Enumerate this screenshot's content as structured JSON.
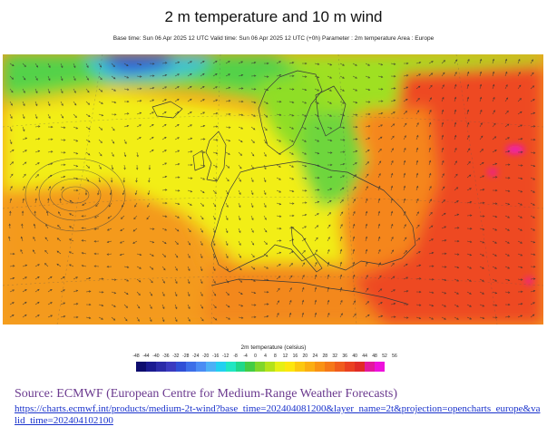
{
  "header": {
    "title": "2 m temperature and 10 m wind",
    "subtitle": "Base time: Sun 06 Apr 2025 12 UTC Valid time: Sun 06 Apr 2025 12 UTC (+0h) Parameter : 2m temperature Area : Europe"
  },
  "legend": {
    "title": "2m temperature (celsius)",
    "ticks": [
      "-48",
      "-44",
      "-40",
      "-36",
      "-32",
      "-28",
      "-24",
      "-20",
      "-16",
      "-12",
      "-8",
      "-4",
      "0",
      "4",
      "8",
      "12",
      "16",
      "20",
      "24",
      "28",
      "32",
      "36",
      "40",
      "44",
      "48",
      "52",
      "56"
    ],
    "colors": [
      "#0d0c6e",
      "#1a1a90",
      "#2a2aa8",
      "#3a3ac0",
      "#2f4fd6",
      "#3c6ee8",
      "#4a8cf4",
      "#4cb0f6",
      "#22d0f0",
      "#20e6c2",
      "#20d88a",
      "#44cc44",
      "#80d62a",
      "#b4e21a",
      "#e6ef14",
      "#fde60e",
      "#fcc810",
      "#fbae12",
      "#f99214",
      "#f57818",
      "#f05c1c",
      "#ea4020",
      "#e02a26",
      "#e2189c",
      "#ee10dc"
    ]
  },
  "source": {
    "text": "Source: ECMWF (European Centre for Medium-Range Weather Forecasts)",
    "link": "https://charts.ecmwf.int/products/medium-2t-wind?base_time=202404081200&layer_name=2t&projection=opencharts_europe&valid_time=202404102100"
  },
  "map_colors": {
    "ocean_warm": "#f49a1e",
    "yellow": "#f2ee16",
    "lime": "#9fe020",
    "green": "#52d24a",
    "cyan": "#3ac2d8",
    "blue": "#2a5ad8",
    "red": "#ee3a22",
    "magenta": "#ee10dc",
    "coast": "#3a3a3a"
  }
}
